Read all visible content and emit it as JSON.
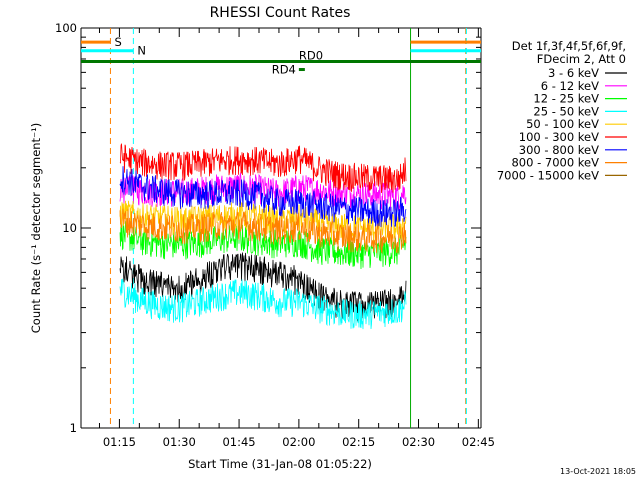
{
  "chart_data": {
    "type": "line",
    "title": "RHESSI Count Rates",
    "xlabel": "Start Time (31-Jan-08 01:05:22)",
    "ylabel": "Count Rate (s⁻¹ detector segment⁻¹)",
    "y_scale": "log",
    "ylim": [
      1,
      100
    ],
    "xlim": [
      "01:05:22",
      "02:45:40"
    ],
    "x_ticks": [
      "01:15",
      "01:30",
      "01:45",
      "02:00",
      "02:15",
      "02:30",
      "02:45"
    ],
    "y_ticks": [
      "1",
      "10",
      "100"
    ],
    "legend_position": "right",
    "legend_header": [
      "Det 1f,3f,4f,5f,6f,9f,",
      "FDecim 2, Att 0"
    ],
    "data_start": "01:15:00",
    "data_end": "02:27:30",
    "series": [
      {
        "name": "3 - 6 keV",
        "color": "#000000",
        "x": [
          "01:15",
          "01:20",
          "01:25",
          "01:30",
          "01:35",
          "01:40",
          "01:45",
          "01:50",
          "01:55",
          "02:00",
          "02:05",
          "02:10",
          "02:15",
          "02:20",
          "02:25",
          "02:27"
        ],
        "values": [
          6.5,
          5.6,
          5.2,
          5.0,
          5.6,
          6.3,
          6.5,
          6.3,
          5.9,
          5.5,
          4.6,
          4.2,
          4.1,
          4.2,
          4.3,
          4.8
        ]
      },
      {
        "name": "6 - 12 keV",
        "color": "#ff00ff",
        "x": [
          "01:15",
          "01:20",
          "01:25",
          "01:30",
          "01:35",
          "01:40",
          "01:45",
          "01:50",
          "01:55",
          "02:00",
          "02:05",
          "02:10",
          "02:15",
          "02:20",
          "02:25",
          "02:27"
        ],
        "values": [
          16.0,
          15.5,
          15.2,
          15.2,
          15.5,
          16.0,
          16.2,
          15.8,
          15.0,
          16.0,
          15.5,
          15.0,
          14.8,
          14.7,
          14.5,
          15.5
        ]
      },
      {
        "name": "12 - 25 keV",
        "color": "#00ff00",
        "x": [
          "01:15",
          "01:20",
          "01:25",
          "01:30",
          "01:35",
          "01:40",
          "01:45",
          "01:50",
          "01:55",
          "02:00",
          "02:05",
          "02:10",
          "02:15",
          "02:20",
          "02:25",
          "02:27"
        ],
        "values": [
          9.5,
          8.7,
          8.4,
          8.3,
          8.5,
          8.8,
          9.0,
          8.7,
          8.4,
          8.6,
          7.8,
          7.6,
          7.5,
          7.6,
          7.7,
          8.6
        ]
      },
      {
        "name": "25 - 50 keV",
        "color": "#00ffff",
        "x": [
          "01:15",
          "01:20",
          "01:25",
          "01:30",
          "01:35",
          "01:40",
          "01:45",
          "01:50",
          "01:55",
          "02:00",
          "02:05",
          "02:10",
          "02:15",
          "02:20",
          "02:25",
          "02:27"
        ],
        "values": [
          5.0,
          4.4,
          4.1,
          4.0,
          4.3,
          4.6,
          4.8,
          4.6,
          4.3,
          4.3,
          4.0,
          3.8,
          3.7,
          3.8,
          3.9,
          4.2
        ]
      },
      {
        "name": "50 - 100 keV",
        "color": "#ffcc00",
        "x": [
          "01:15",
          "01:20",
          "01:25",
          "01:30",
          "01:35",
          "01:40",
          "01:45",
          "01:50",
          "01:55",
          "02:00",
          "02:05",
          "02:10",
          "02:15",
          "02:20",
          "02:25",
          "02:27"
        ],
        "values": [
          12.0,
          11.5,
          11.2,
          11.0,
          11.1,
          11.4,
          11.6,
          11.4,
          11.0,
          11.2,
          10.6,
          10.2,
          10.0,
          10.0,
          10.1,
          10.8
        ]
      },
      {
        "name": "100 - 300 keV",
        "color": "#ff0000",
        "x": [
          "01:15",
          "01:20",
          "01:25",
          "01:30",
          "01:35",
          "01:40",
          "01:45",
          "01:50",
          "01:55",
          "02:00",
          "02:05",
          "02:10",
          "02:15",
          "02:20",
          "02:25",
          "02:27"
        ],
        "values": [
          23.0,
          21.5,
          20.8,
          20.6,
          21.0,
          21.8,
          22.2,
          21.8,
          21.0,
          22.5,
          19.8,
          18.5,
          18.0,
          17.8,
          17.6,
          20.0
        ]
      },
      {
        "name": "300 - 800 keV",
        "color": "#0000ff",
        "x": [
          "01:15",
          "01:20",
          "01:25",
          "01:30",
          "01:35",
          "01:40",
          "01:45",
          "01:50",
          "01:55",
          "02:00",
          "02:05",
          "02:10",
          "02:15",
          "02:20",
          "02:25",
          "02:27"
        ],
        "values": [
          18.0,
          16.5,
          15.5,
          15.0,
          14.8,
          14.9,
          15.0,
          14.6,
          13.5,
          13.5,
          13.0,
          12.6,
          12.3,
          12.0,
          12.0,
          13.0
        ]
      },
      {
        "name": "800 - 7000 keV",
        "color": "#ff8000",
        "x": [
          "01:15",
          "01:20",
          "01:25",
          "01:30",
          "01:35",
          "01:40",
          "01:45",
          "01:50",
          "01:55",
          "02:00",
          "02:05",
          "02:10",
          "02:15",
          "02:20",
          "02:25",
          "02:27"
        ],
        "values": [
          11.0,
          10.5,
          10.2,
          10.0,
          10.1,
          10.4,
          10.5,
          10.2,
          9.8,
          10.2,
          9.5,
          9.2,
          9.0,
          9.0,
          9.0,
          9.8
        ]
      },
      {
        "name": "7000 - 15000 keV",
        "color": "#996600",
        "x": [],
        "values": []
      }
    ],
    "annotations": {
      "vertical_lines": [
        {
          "time": "01:12:45",
          "color": "#ff8000",
          "style": "dashed"
        },
        {
          "time": "01:18:30",
          "color": "#00ffff",
          "style": "dashed"
        },
        {
          "time": "02:28:00",
          "color": "#00aa00",
          "style": "solid"
        },
        {
          "time": "02:41:50",
          "color": "#ff8000",
          "style": "dashed"
        },
        {
          "time": "02:42:00",
          "color": "#00ffff",
          "style": "dashed"
        }
      ],
      "horizontal_bars": [
        {
          "label": "S",
          "color": "#ff8000",
          "y": 85,
          "segments": [
            [
              "01:05:22",
              "01:12:45"
            ],
            [
              "02:28:00",
              "02:45:40"
            ]
          ]
        },
        {
          "label": "N",
          "color": "#00ffff",
          "y": 77,
          "segments": [
            [
              "01:05:22",
              "01:18:30"
            ],
            [
              "02:28:00",
              "02:45:40"
            ]
          ]
        },
        {
          "label": "RD0",
          "color": "#007700",
          "y": 68,
          "segments": [
            [
              "01:05:22",
              "02:45:40"
            ]
          ]
        },
        {
          "label": "RD4",
          "color": "#007700",
          "y": 62,
          "segments": [
            [
              "02:00:00",
              "02:01:30"
            ]
          ]
        }
      ]
    }
  },
  "footer": {
    "timestamp": "13-Oct-2021 18:05"
  }
}
